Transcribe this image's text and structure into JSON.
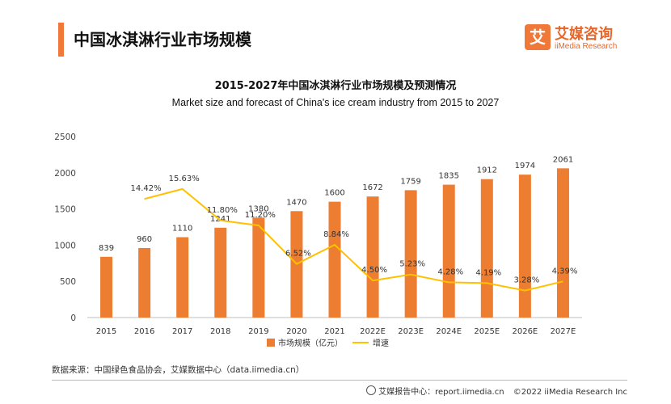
{
  "header": {
    "title": "中国冰淇淋行业市场规模",
    "logo_cn": "艾媒咨询",
    "logo_en": "iiMedia Research",
    "logo_mark": "艾"
  },
  "chart_data": {
    "type": "bar",
    "title": "2015-2027年中国冰淇淋行业市场规模及预测情况",
    "subtitle": "Market size and forecast of China's ice cream industry from 2015 to 2027",
    "categories": [
      "2015",
      "2016",
      "2017",
      "2018",
      "2019",
      "2020",
      "2021",
      "2022E",
      "2023E",
      "2024E",
      "2025E",
      "2026E",
      "2027E"
    ],
    "series": [
      {
        "name": "市场规模（亿元）",
        "type": "bar",
        "color": "#ed7d31",
        "values": [
          839,
          960,
          1110,
          1241,
          1380,
          1470,
          1600,
          1672,
          1759,
          1835,
          1912,
          1974,
          2061
        ],
        "labels": [
          "839",
          "960",
          "1110",
          "1241",
          "1380",
          "1470",
          "1600",
          "1672",
          "1759",
          "1835",
          "1912",
          "1974",
          "2061"
        ]
      },
      {
        "name": "增速",
        "type": "line",
        "color": "#ffc000",
        "values": [
          null,
          14.42,
          15.63,
          11.8,
          11.2,
          6.52,
          8.84,
          4.5,
          5.23,
          4.28,
          4.19,
          3.28,
          4.39
        ],
        "labels": [
          "",
          "14.42%",
          "15.63%",
          "11.80%",
          "11.20%",
          "6.52%",
          "8.84%",
          "4.50%",
          "5.23%",
          "4.28%",
          "4.19%",
          "3.28%",
          "4.39%"
        ]
      }
    ],
    "ylim": [
      0,
      2500
    ],
    "yticks": [
      "0",
      "500",
      "1000",
      "1500",
      "2000",
      "2500"
    ],
    "y2lim": [
      0,
      22
    ],
    "xlabel": "",
    "ylabel": "",
    "grid": false,
    "legend": "bottom"
  },
  "source": "数据来源：中国绿色食品协会，艾媒数据中心（data.iimedia.cn）",
  "footer": {
    "report": "艾媒报告中心：report.iimedia.cn",
    "copyright": "©2022  iiMedia Research  Inc"
  }
}
